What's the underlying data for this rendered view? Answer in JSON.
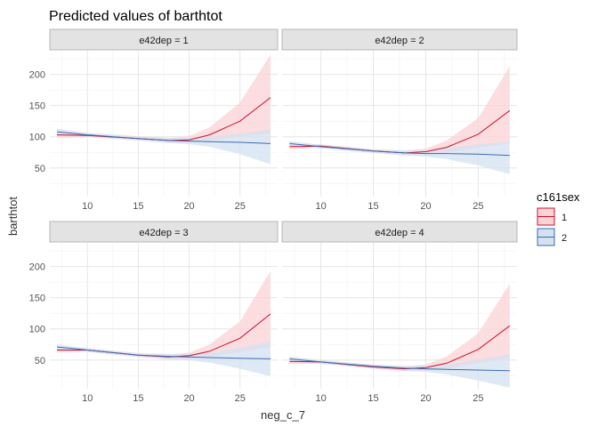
{
  "chart_data": {
    "type": "line",
    "title": "Predicted values of barthtot",
    "xlabel": "neg_c_7",
    "ylabel": "barthtot",
    "xlim": [
      6.3,
      28.7
    ],
    "ylim": [
      4,
      238
    ],
    "x_ticks": [
      10,
      15,
      20,
      25
    ],
    "y_ticks": [
      50,
      100,
      150,
      200
    ],
    "grid": true,
    "legend": {
      "title": "c161sex",
      "position": "right",
      "entries": [
        {
          "label": "1",
          "line": "#c8102e",
          "fill": "#fbd3d5"
        },
        {
          "label": "2",
          "line": "#3a6bb3",
          "fill": "#d4e1f1"
        }
      ]
    },
    "panels": [
      {
        "strip": "e42dep = 1",
        "x": [
          7,
          10,
          15,
          18,
          20,
          22,
          25,
          28
        ],
        "series": [
          {
            "name": "1",
            "values": [
              103,
              102,
              97,
              94,
              95,
              103,
              125,
              163
            ],
            "lower": [
              98,
              99,
              94,
              90,
              90,
              93,
              100,
              105
            ],
            "upper": [
              108,
              106,
              101,
              98,
              101,
              115,
              155,
              232
            ]
          },
          {
            "name": "2",
            "values": [
              108,
              103,
              97,
              94,
              93,
              92,
              91,
              89
            ],
            "lower": [
              103,
              100,
              94,
              90,
              88,
              84,
              72,
              56
            ],
            "upper": [
              113,
              106,
              100,
              98,
              98,
              100,
              105,
              112
            ]
          }
        ]
      },
      {
        "strip": "e42dep = 2",
        "x": [
          7,
          10,
          15,
          18,
          20,
          22,
          25,
          28
        ],
        "series": [
          {
            "name": "1",
            "values": [
              84,
              85,
              77,
              74,
              76,
              83,
              104,
              142
            ],
            "lower": [
              80,
              82,
              74,
              70,
              71,
              74,
              82,
              90
            ],
            "upper": [
              88,
              88,
              80,
              78,
              81,
              94,
              130,
              213
            ]
          },
          {
            "name": "2",
            "values": [
              89,
              84,
              77,
              74,
              73,
              73,
              72,
              70
            ],
            "lower": [
              85,
              81,
              74,
              70,
              68,
              64,
              54,
              40
            ],
            "upper": [
              93,
              87,
              80,
              78,
              78,
              82,
              88,
              92
            ]
          }
        ]
      },
      {
        "strip": "e42dep = 3",
        "x": [
          7,
          10,
          15,
          18,
          20,
          22,
          25,
          28
        ],
        "series": [
          {
            "name": "1",
            "values": [
              66,
              66,
              58,
              55,
              57,
              64,
              85,
              124
            ],
            "lower": [
              62,
              63,
              55,
              51,
              52,
              55,
              63,
              70
            ],
            "upper": [
              70,
              69,
              61,
              59,
              62,
              75,
              112,
              193
            ]
          },
          {
            "name": "2",
            "values": [
              71,
              66,
              58,
              56,
              55,
              54,
              53,
              52
            ],
            "lower": [
              67,
              63,
              55,
              52,
              50,
              46,
              36,
              24
            ],
            "upper": [
              75,
              69,
              61,
              60,
              60,
              62,
              70,
              80
            ]
          }
        ]
      },
      {
        "strip": "e42dep = 4",
        "x": [
          7,
          10,
          15,
          18,
          20,
          22,
          25,
          28
        ],
        "series": [
          {
            "name": "1",
            "values": [
              48,
              47,
              39,
              36,
              38,
              45,
              67,
              105
            ],
            "lower": [
              44,
              44,
              36,
              32,
              33,
              36,
              45,
              52
            ],
            "upper": [
              52,
              50,
              42,
              40,
              43,
              56,
              93,
              173
            ]
          },
          {
            "name": "2",
            "values": [
              52,
              47,
              40,
              37,
              36,
              35,
              34,
              33
            ],
            "lower": [
              48,
              44,
              37,
              33,
              31,
              27,
              17,
              6
            ],
            "upper": [
              56,
              50,
              43,
              41,
              41,
              43,
              51,
              60
            ]
          }
        ]
      }
    ]
  }
}
